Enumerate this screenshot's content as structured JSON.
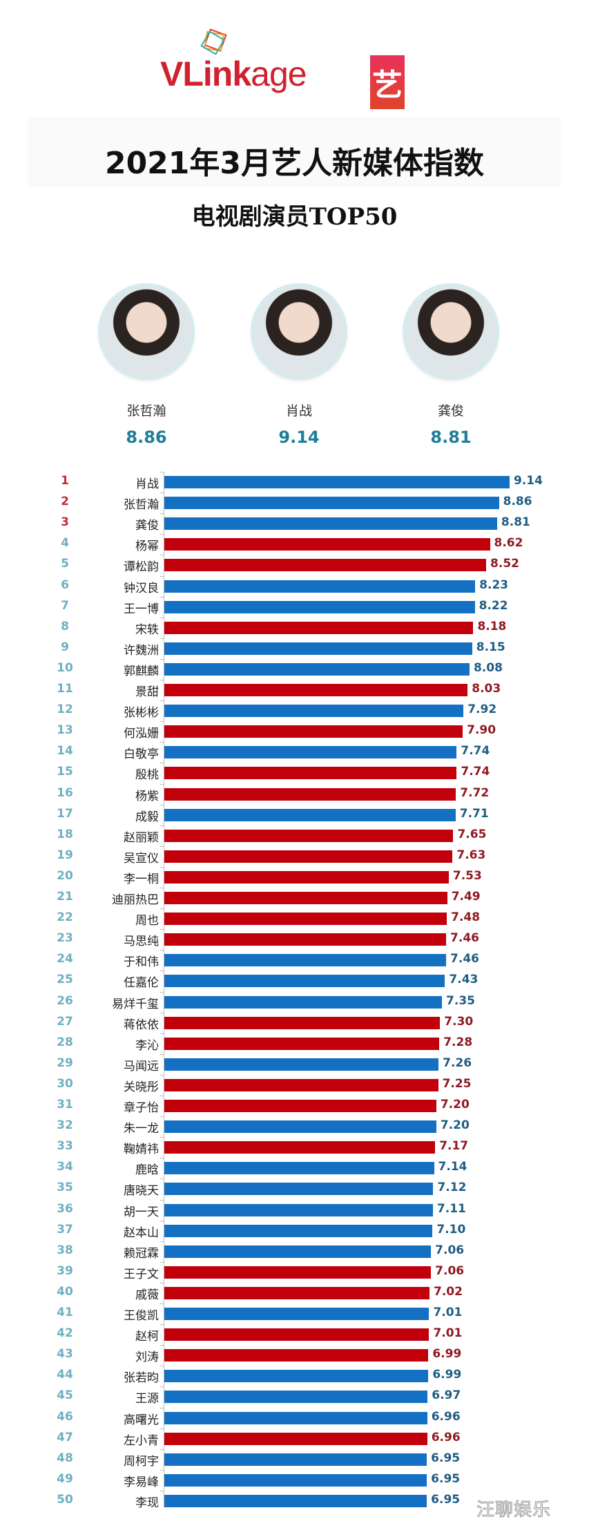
{
  "header": {
    "logo_text_bold": "VLink",
    "logo_text_light": "age",
    "badge_char": "艺",
    "title": "2021年3月艺人新媒体指数",
    "subtitle": "电视剧演员TOP50"
  },
  "podium": [
    {
      "name": "张哲瀚",
      "score": "8.86"
    },
    {
      "name": "肖战",
      "score": "9.14"
    },
    {
      "name": "龚俊",
      "score": "8.81"
    }
  ],
  "watermark": "汪聊娱乐",
  "colors": {
    "blue_bar": "#1470c2",
    "red_bar": "#c2000c",
    "top_rank": "#c8283a",
    "rank": "#6fb0c0",
    "podium_score": "#1e7f97"
  },
  "chart_data": {
    "type": "bar",
    "orientation": "horizontal",
    "title": "2021年3月艺人新媒体指数",
    "subtitle": "电视剧演员TOP50",
    "xlabel": "",
    "ylabel": "",
    "grid": false,
    "legend": "none (bar color: blue = male, red = female)",
    "categories": [
      "肖战",
      "张哲瀚",
      "龚俊",
      "杨幂",
      "谭松韵",
      "钟汉良",
      "王一博",
      "宋轶",
      "许魏洲",
      "郭麒麟",
      "景甜",
      "张彬彬",
      "何泓姗",
      "白敬亭",
      "殷桃",
      "杨紫",
      "成毅",
      "赵丽颖",
      "吴宣仪",
      "李一桐",
      "迪丽热巴",
      "周也",
      "马思纯",
      "于和伟",
      "任嘉伦",
      "易烊千玺",
      "蒋依依",
      "李沁",
      "马闻远",
      "关晓彤",
      "章子怡",
      "朱一龙",
      "鞠婧祎",
      "鹿晗",
      "唐晓天",
      "胡一天",
      "赵本山",
      "赖冠霖",
      "王子文",
      "戚薇",
      "王俊凯",
      "赵柯",
      "刘涛",
      "张若昀",
      "王源",
      "高曙光",
      "左小青",
      "周柯宇",
      "李易峰",
      "李现"
    ],
    "values": [
      9.14,
      8.86,
      8.81,
      8.62,
      8.52,
      8.23,
      8.22,
      8.18,
      8.15,
      8.08,
      8.03,
      7.92,
      7.9,
      7.74,
      7.74,
      7.72,
      7.71,
      7.65,
      7.63,
      7.53,
      7.49,
      7.48,
      7.46,
      7.46,
      7.43,
      7.35,
      7.3,
      7.28,
      7.26,
      7.25,
      7.2,
      7.2,
      7.17,
      7.14,
      7.12,
      7.11,
      7.1,
      7.06,
      7.06,
      7.02,
      7.01,
      7.01,
      6.99,
      6.99,
      6.97,
      6.96,
      6.96,
      6.95,
      6.95,
      6.95
    ],
    "colors": [
      "blue",
      "blue",
      "blue",
      "red",
      "red",
      "blue",
      "blue",
      "red",
      "blue",
      "blue",
      "red",
      "blue",
      "red",
      "blue",
      "red",
      "red",
      "blue",
      "red",
      "red",
      "red",
      "red",
      "red",
      "red",
      "blue",
      "blue",
      "blue",
      "red",
      "red",
      "blue",
      "red",
      "red",
      "blue",
      "red",
      "blue",
      "blue",
      "blue",
      "blue",
      "blue",
      "red",
      "red",
      "blue",
      "red",
      "red",
      "blue",
      "blue",
      "blue",
      "red",
      "blue",
      "blue",
      "blue"
    ]
  }
}
